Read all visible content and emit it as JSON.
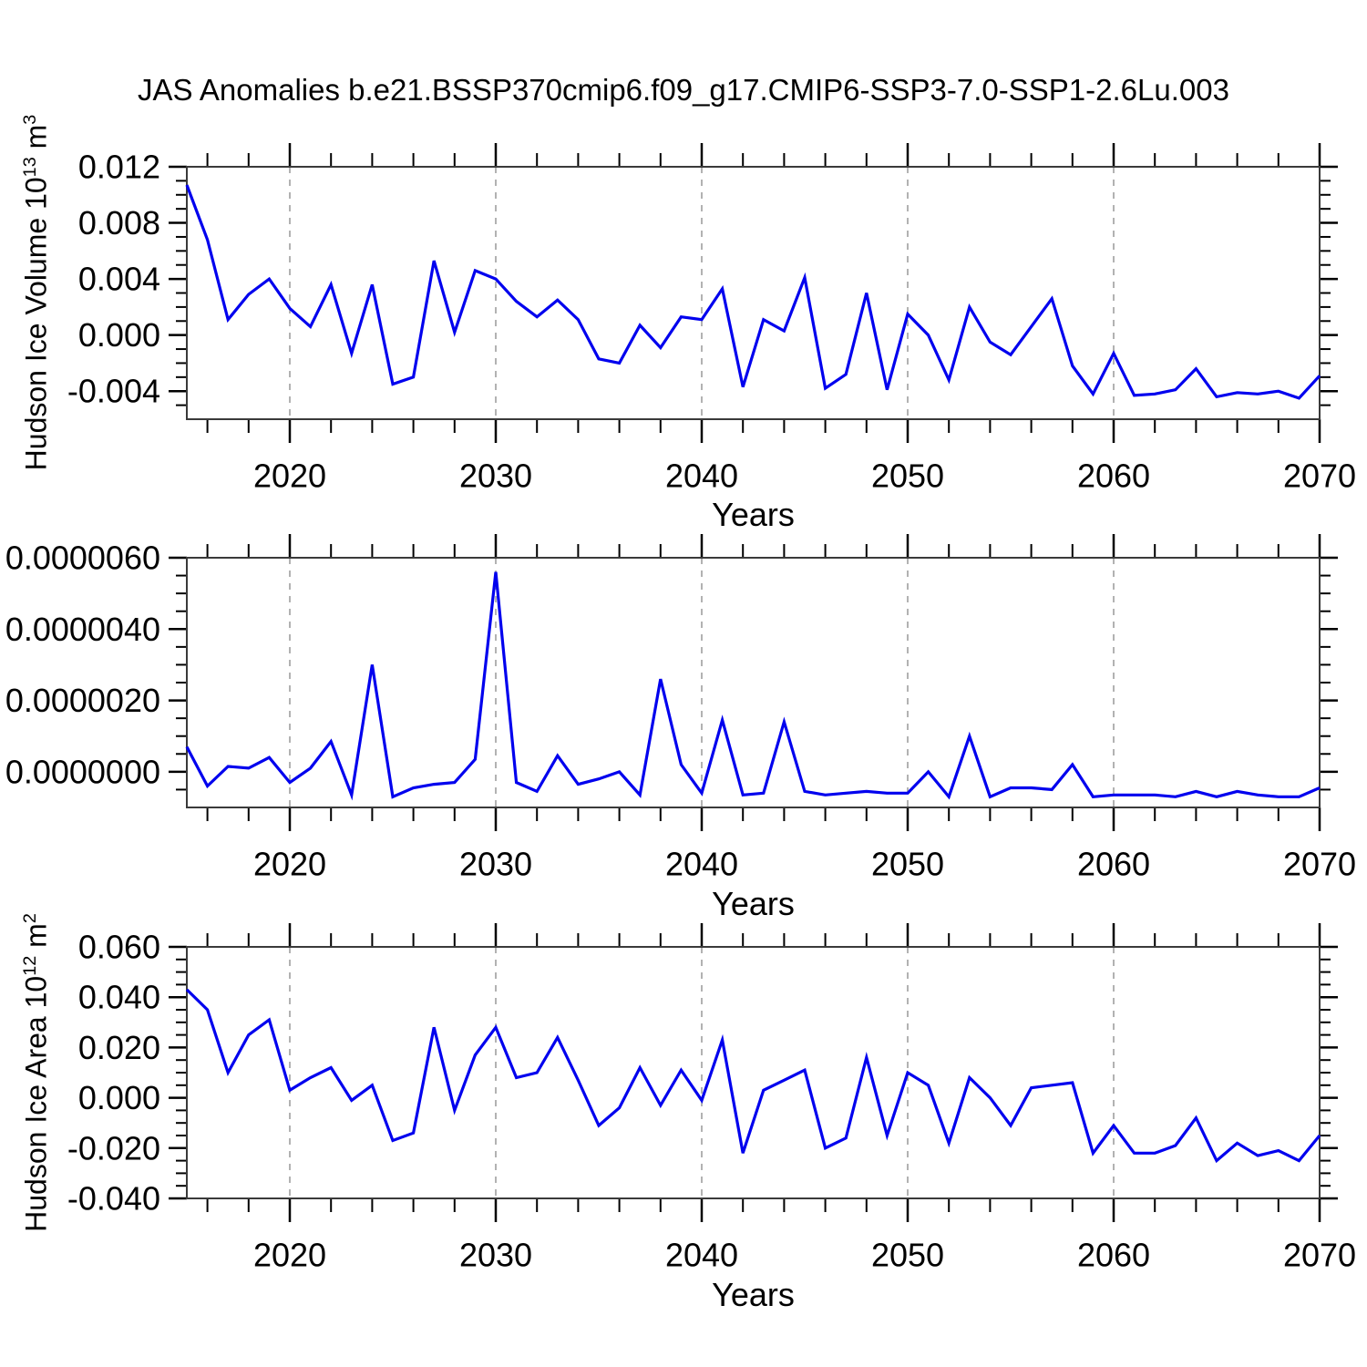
{
  "title": "JAS Anomalies b.e21.BSSP370cmip6.f09_g17.CMIP6-SSP3-7.0-SSP1-2.6Lu.003",
  "colors": {
    "line": "#0000ee",
    "frame": "#3a3a3a",
    "tick": "#000000",
    "gridline": "#999999",
    "text": "#000000",
    "background": "#ffffff"
  },
  "chart_data": [
    {
      "type": "line",
      "title": "",
      "xlabel": "Years",
      "ylabel": "Hudson Ice Volume 10^13 m^3",
      "ylabel_parts": {
        "base": "Hudson Ice Volume 10",
        "exp": "13",
        "mid": " m",
        "exp2": "3"
      },
      "xlim": [
        2015,
        2070
      ],
      "ylim": [
        -0.006,
        0.012
      ],
      "xtick_values": [
        2020,
        2030,
        2040,
        2050,
        2060,
        2070
      ],
      "xtick_labels": [
        "2020",
        "2030",
        "2040",
        "2050",
        "2060",
        "2070"
      ],
      "x_minor_step": 2,
      "ytick_values": [
        0.012,
        0.008,
        0.004,
        0.0,
        -0.004
      ],
      "ytick_labels": [
        "0.012",
        "0.008",
        "0.004",
        "0.000",
        "-0.004"
      ],
      "y_minor_step": 0.001,
      "gridlines_x": [
        2020,
        2030,
        2040,
        2050,
        2060
      ],
      "grid": "vertical-dashed",
      "legend": "none",
      "x": [
        2015,
        2016,
        2017,
        2018,
        2019,
        2020,
        2021,
        2022,
        2023,
        2024,
        2025,
        2026,
        2027,
        2028,
        2029,
        2030,
        2031,
        2032,
        2033,
        2034,
        2035,
        2036,
        2037,
        2038,
        2039,
        2040,
        2041,
        2042,
        2043,
        2044,
        2045,
        2046,
        2047,
        2048,
        2049,
        2050,
        2051,
        2052,
        2053,
        2054,
        2055,
        2056,
        2057,
        2058,
        2059,
        2060,
        2061,
        2062,
        2063,
        2064,
        2065,
        2066,
        2067,
        2068,
        2069,
        2070
      ],
      "values": [
        0.0107,
        0.0068,
        0.0011,
        0.0029,
        0.004,
        0.0019,
        0.0006,
        0.0036,
        -0.0013,
        0.0036,
        -0.0035,
        -0.003,
        0.0053,
        0.0002,
        0.0046,
        0.004,
        0.0024,
        0.0013,
        0.0025,
        0.0011,
        -0.0017,
        -0.002,
        0.0007,
        -0.0009,
        0.0013,
        0.0011,
        0.0033,
        -0.0037,
        0.0011,
        0.0003,
        0.0041,
        -0.0038,
        -0.0028,
        0.003,
        -0.0039,
        0.0015,
        0.0,
        -0.0032,
        0.002,
        -0.0005,
        -0.0014,
        0.0006,
        0.0026,
        -0.0022,
        -0.0042,
        -0.0013,
        -0.0043,
        -0.0042,
        -0.0039,
        -0.0024,
        -0.0044,
        -0.0041,
        -0.0042,
        -0.004,
        -0.0045,
        -0.0029
      ]
    },
    {
      "type": "line",
      "title": "",
      "xlabel": "Years",
      "ylabel": "",
      "xlim": [
        2015,
        2070
      ],
      "ylim": [
        -1e-06,
        6e-06
      ],
      "xtick_values": [
        2020,
        2030,
        2040,
        2050,
        2060,
        2070
      ],
      "xtick_labels": [
        "2020",
        "2030",
        "2040",
        "2050",
        "2060",
        "2070"
      ],
      "x_minor_step": 2,
      "ytick_values": [
        6e-06,
        4e-06,
        2e-06,
        0.0
      ],
      "ytick_labels": [
        "0.0000060",
        "0.0000040",
        "0.0000020",
        "0.0000000"
      ],
      "y_minor_step": 5e-07,
      "gridlines_x": [
        2020,
        2030,
        2040,
        2050,
        2060
      ],
      "grid": "vertical-dashed",
      "legend": "none",
      "x": [
        2015,
        2016,
        2017,
        2018,
        2019,
        2020,
        2021,
        2022,
        2023,
        2024,
        2025,
        2026,
        2027,
        2028,
        2029,
        2030,
        2031,
        2032,
        2033,
        2034,
        2035,
        2036,
        2037,
        2038,
        2039,
        2040,
        2041,
        2042,
        2043,
        2044,
        2045,
        2046,
        2047,
        2048,
        2049,
        2050,
        2051,
        2052,
        2053,
        2054,
        2055,
        2056,
        2057,
        2058,
        2059,
        2060,
        2061,
        2062,
        2063,
        2064,
        2065,
        2066,
        2067,
        2068,
        2069,
        2070
      ],
      "values": [
        7e-07,
        -4e-07,
        1.5e-07,
        1e-07,
        4e-07,
        -3e-07,
        1e-07,
        8.5e-07,
        -6.5e-07,
        3e-06,
        -7e-07,
        -4.5e-07,
        -3.5e-07,
        -3e-07,
        3.5e-07,
        5.6e-06,
        -3e-07,
        -5.5e-07,
        4.5e-07,
        -3.5e-07,
        -2e-07,
        0.0,
        -6.5e-07,
        2.6e-06,
        2e-07,
        -6e-07,
        1.45e-06,
        -6.5e-07,
        -6e-07,
        1.4e-06,
        -5.5e-07,
        -6.5e-07,
        -6e-07,
        -5.5e-07,
        -6e-07,
        -6e-07,
        0.0,
        -7e-07,
        1e-06,
        -7e-07,
        -4.5e-07,
        -4.5e-07,
        -5e-07,
        2e-07,
        -7e-07,
        -6.5e-07,
        -6.5e-07,
        -6.5e-07,
        -7e-07,
        -5.5e-07,
        -7e-07,
        -5.5e-07,
        -6.5e-07,
        -7e-07,
        -7e-07,
        -4.5e-07
      ]
    },
    {
      "type": "line",
      "title": "",
      "xlabel": "Years",
      "ylabel": "Hudson Ice Area 10^12 m^2",
      "ylabel_parts": {
        "base": "Hudson Ice Area 10",
        "exp": "12",
        "mid": " m",
        "exp2": "2"
      },
      "xlim": [
        2015,
        2070
      ],
      "ylim": [
        -0.04,
        0.06
      ],
      "xtick_values": [
        2020,
        2030,
        2040,
        2050,
        2060,
        2070
      ],
      "xtick_labels": [
        "2020",
        "2030",
        "2040",
        "2050",
        "2060",
        "2070"
      ],
      "x_minor_step": 2,
      "ytick_values": [
        0.06,
        0.04,
        0.02,
        0.0,
        -0.02,
        -0.04
      ],
      "ytick_labels": [
        "0.060",
        "0.040",
        "0.020",
        "0.000",
        "-0.020",
        "-0.040"
      ],
      "y_minor_step": 0.005,
      "gridlines_x": [
        2020,
        2030,
        2040,
        2050,
        2060
      ],
      "grid": "vertical-dashed",
      "legend": "none",
      "x": [
        2015,
        2016,
        2017,
        2018,
        2019,
        2020,
        2021,
        2022,
        2023,
        2024,
        2025,
        2026,
        2027,
        2028,
        2029,
        2030,
        2031,
        2032,
        2033,
        2034,
        2035,
        2036,
        2037,
        2038,
        2039,
        2040,
        2041,
        2042,
        2043,
        2044,
        2045,
        2046,
        2047,
        2048,
        2049,
        2050,
        2051,
        2052,
        2053,
        2054,
        2055,
        2056,
        2057,
        2058,
        2059,
        2060,
        2061,
        2062,
        2063,
        2064,
        2065,
        2066,
        2067,
        2068,
        2069,
        2070
      ],
      "values": [
        0.043,
        0.035,
        0.01,
        0.025,
        0.031,
        0.003,
        0.008,
        0.012,
        -0.001,
        0.005,
        -0.017,
        -0.014,
        0.028,
        -0.005,
        0.017,
        0.028,
        0.008,
        0.01,
        0.024,
        0.007,
        -0.011,
        -0.004,
        0.012,
        -0.003,
        0.011,
        -0.001,
        0.023,
        -0.022,
        0.003,
        0.007,
        0.011,
        -0.02,
        -0.016,
        0.016,
        -0.015,
        0.01,
        0.005,
        -0.018,
        0.008,
        0.0,
        -0.011,
        0.004,
        0.005,
        0.006,
        -0.022,
        -0.011,
        -0.022,
        -0.022,
        -0.019,
        -0.008,
        -0.025,
        -0.018,
        -0.023,
        -0.021,
        -0.025,
        -0.015
      ]
    }
  ]
}
